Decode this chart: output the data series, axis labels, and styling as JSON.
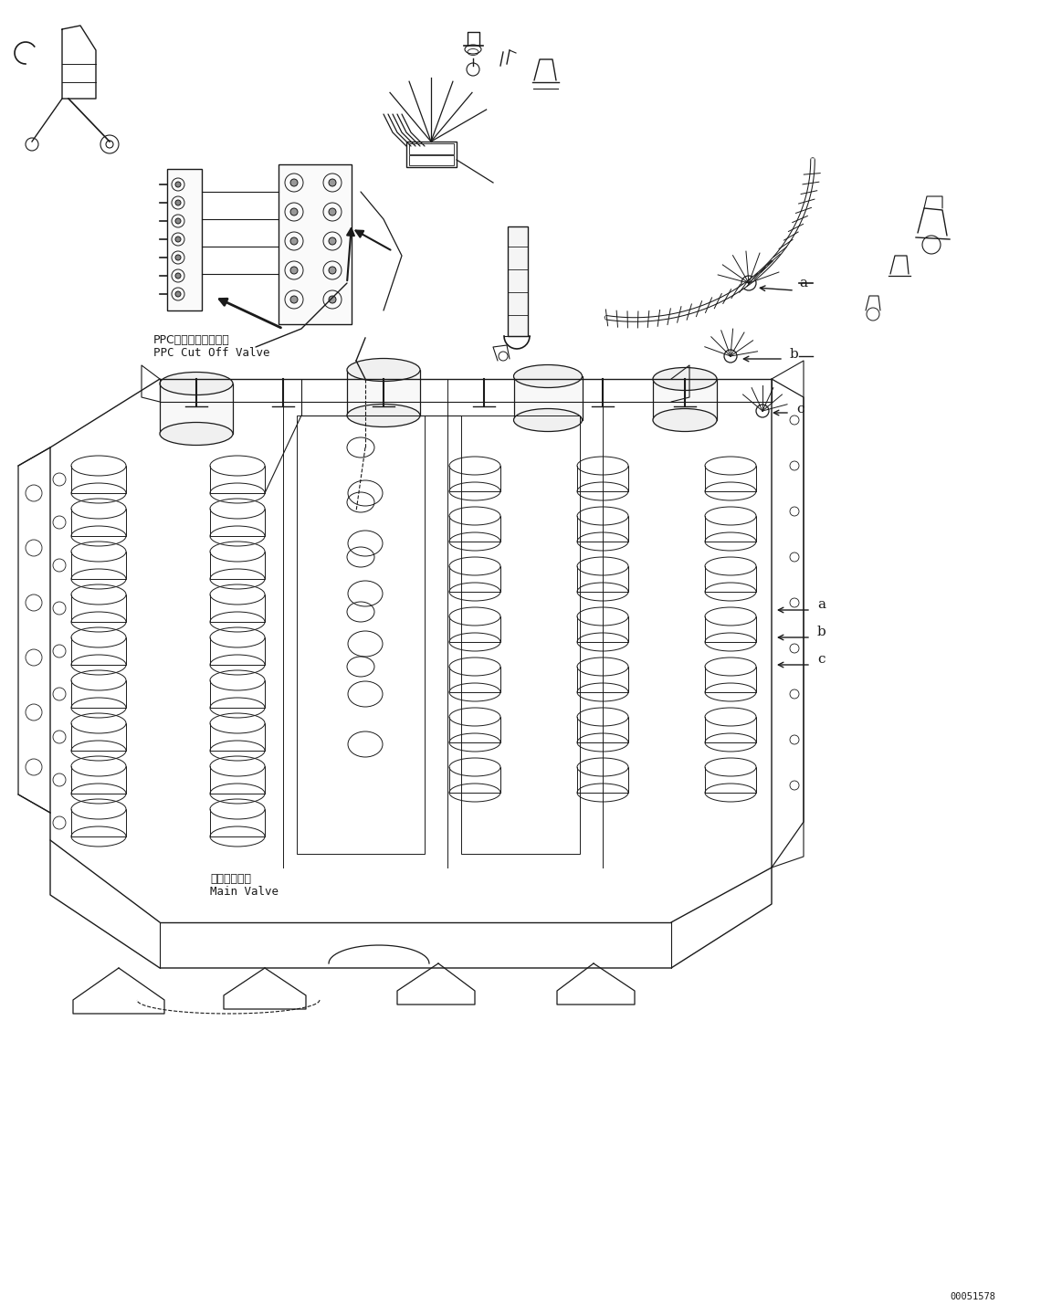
{
  "background_color": "#ffffff",
  "line_color": "#1a1a1a",
  "fig_width": 11.63,
  "fig_height": 14.4,
  "dpi": 100,
  "part_number": "00051578",
  "label_a": "a",
  "label_b": "b",
  "label_c": "c",
  "ppc_label_jp": "PPCカットオフバルブ",
  "ppc_label_en": "PPC Cut Off Valve",
  "main_valve_jp": "メインバルブ",
  "main_valve_en": "Main Valve"
}
